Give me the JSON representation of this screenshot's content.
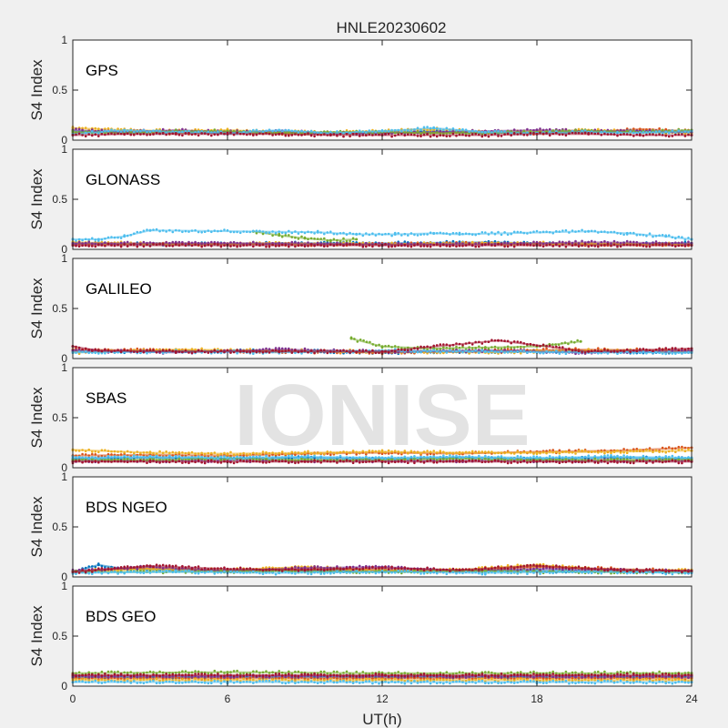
{
  "chart_data": {
    "type": "scatter",
    "title": "HNLE20230602",
    "xlabel": "UT(h)",
    "ylabel": "S4 Index",
    "xlim": [
      0,
      24
    ],
    "ylim": [
      0,
      1
    ],
    "xticks": [
      0,
      6,
      12,
      18,
      24
    ],
    "xtick_labels": [
      "0",
      "6",
      "12",
      "18",
      "24"
    ],
    "yticks": [
      0,
      0.5,
      1
    ],
    "ytick_labels": [
      "0",
      "0.5",
      "1"
    ],
    "grid": false,
    "watermark": "IONISE",
    "colors": [
      "#0072bd",
      "#d95319",
      "#edb120",
      "#7e2f8e",
      "#77ac30",
      "#4dbeee",
      "#a2142f"
    ],
    "panels": [
      {
        "label": "GPS",
        "series": [
          {
            "x": [
              0,
              2,
              4,
              6,
              8,
              10,
              12,
              14,
              16,
              18,
              20,
              22,
              24
            ],
            "y": [
              0.09,
              0.08,
              0.08,
              0.07,
              0.08,
              0.07,
              0.07,
              0.09,
              0.07,
              0.08,
              0.08,
              0.09,
              0.08
            ]
          },
          {
            "x": [
              0,
              2,
              4,
              6,
              8,
              10,
              12,
              14,
              16,
              18,
              20,
              22,
              24
            ],
            "y": [
              0.07,
              0.09,
              0.07,
              0.08,
              0.07,
              0.06,
              0.08,
              0.07,
              0.08,
              0.07,
              0.08,
              0.11,
              0.09
            ]
          },
          {
            "x": [
              0,
              2,
              4,
              6,
              8,
              10,
              12,
              14,
              16,
              18,
              20,
              22,
              24
            ],
            "y": [
              0.12,
              0.1,
              0.09,
              0.1,
              0.08,
              0.08,
              0.09,
              0.11,
              0.08,
              0.09,
              0.1,
              0.08,
              0.07
            ]
          },
          {
            "x": [
              0,
              2,
              4,
              6,
              8,
              10,
              12,
              14,
              16,
              18,
              20,
              22,
              24
            ],
            "y": [
              0.1,
              0.08,
              0.1,
              0.08,
              0.09,
              0.07,
              0.07,
              0.08,
              0.09,
              0.1,
              0.09,
              0.09,
              0.08
            ]
          },
          {
            "x": [
              0,
              2,
              4,
              6,
              8,
              10,
              12,
              14,
              16,
              18,
              20,
              22,
              24
            ],
            "y": [
              0.08,
              0.07,
              0.09,
              0.09,
              0.07,
              0.08,
              0.08,
              0.07,
              0.07,
              0.08,
              0.09,
              0.08,
              0.1
            ]
          },
          {
            "x": [
              0,
              2,
              4,
              6,
              8,
              10,
              12,
              14,
              16,
              18,
              20,
              22,
              24
            ],
            "y": [
              0.06,
              0.1,
              0.08,
              0.07,
              0.1,
              0.07,
              0.09,
              0.12,
              0.08,
              0.07,
              0.08,
              0.07,
              0.09
            ]
          },
          {
            "x": [
              0,
              2,
              4,
              6,
              8,
              10,
              12,
              14,
              16,
              18,
              20,
              22,
              24
            ],
            "y": [
              0.05,
              0.06,
              0.06,
              0.06,
              0.06,
              0.05,
              0.05,
              0.05,
              0.05,
              0.06,
              0.06,
              0.05,
              0.05
            ]
          }
        ]
      },
      {
        "label": "GLONASS",
        "series": [
          {
            "x": [
              0,
              4,
              8,
              12,
              16,
              20,
              24
            ],
            "y": [
              0.06,
              0.05,
              0.06,
              0.06,
              0.07,
              0.05,
              0.06
            ]
          },
          {
            "x": [
              0,
              4,
              8,
              12,
              16,
              20,
              24
            ],
            "y": [
              0.05,
              0.06,
              0.05,
              0.05,
              0.06,
              0.05,
              0.05
            ]
          },
          {
            "x": [
              0,
              4,
              8,
              12,
              16,
              20,
              24
            ],
            "y": [
              0.07,
              0.05,
              0.06,
              0.05,
              0.06,
              0.06,
              0.05
            ]
          },
          {
            "x": [
              0,
              4,
              8,
              12,
              16,
              20,
              24
            ],
            "y": [
              0.06,
              0.06,
              0.06,
              0.05,
              0.05,
              0.07,
              0.06
            ]
          },
          {
            "x": [
              7,
              8,
              9,
              10,
              11
            ],
            "y": [
              0.18,
              0.14,
              0.11,
              0.09,
              0.1
            ]
          },
          {
            "x": [
              0,
              1,
              2,
              3,
              9.5,
              11,
              12.5,
              14,
              15,
              20,
              21.5,
              23,
              24
            ],
            "y": [
              0.1,
              0.1,
              0.13,
              0.19,
              0.17,
              0.15,
              0.15,
              0.16,
              0.15,
              0.18,
              0.16,
              0.13,
              0.1
            ]
          },
          {
            "x": [
              0,
              6,
              12,
              18,
              24
            ],
            "y": [
              0.04,
              0.04,
              0.04,
              0.04,
              0.04
            ]
          }
        ]
      },
      {
        "label": "GALILEO",
        "series": [
          {
            "x": [
              0,
              4,
              8,
              12,
              16,
              20,
              24
            ],
            "y": [
              0.07,
              0.07,
              0.08,
              0.06,
              0.07,
              0.07,
              0.06
            ]
          },
          {
            "x": [
              0,
              4,
              8,
              12,
              16,
              20,
              24
            ],
            "y": [
              0.09,
              0.08,
              0.07,
              0.06,
              0.08,
              0.09,
              0.08
            ]
          },
          {
            "x": [
              0,
              4,
              8,
              12,
              16,
              20,
              24
            ],
            "y": [
              0.06,
              0.09,
              0.08,
              0.07,
              0.06,
              0.08,
              0.07
            ]
          },
          {
            "x": [
              0,
              4,
              8,
              12,
              16,
              20,
              24
            ],
            "y": [
              0.08,
              0.06,
              0.09,
              0.07,
              0.08,
              0.06,
              0.08
            ]
          },
          {
            "x": [
              10.8,
              12,
              14,
              16,
              18,
              19.7
            ],
            "y": [
              0.2,
              0.12,
              0.1,
              0.11,
              0.12,
              0.17
            ]
          },
          {
            "x": [
              0,
              4,
              8,
              12,
              16,
              20,
              24
            ],
            "y": [
              0.06,
              0.07,
              0.06,
              0.08,
              0.07,
              0.06,
              0.06
            ]
          },
          {
            "x": [
              0,
              1,
              4,
              8,
              12,
              16.5,
              20,
              24
            ],
            "y": [
              0.12,
              0.08,
              0.07,
              0.07,
              0.07,
              0.18,
              0.07,
              0.1
            ]
          }
        ]
      },
      {
        "label": "SBAS",
        "series": [
          {
            "x": [
              0,
              3,
              6,
              9,
              12,
              15,
              18,
              21,
              24
            ],
            "y": [
              0.09,
              0.1,
              0.09,
              0.1,
              0.09,
              0.1,
              0.09,
              0.1,
              0.09
            ]
          },
          {
            "x": [
              0,
              3,
              6,
              9,
              12,
              15,
              18,
              21,
              24
            ],
            "y": [
              0.12,
              0.13,
              0.12,
              0.14,
              0.15,
              0.14,
              0.16,
              0.17,
              0.2
            ]
          },
          {
            "x": [
              0,
              3,
              6,
              9,
              12,
              15,
              18,
              21,
              24
            ],
            "y": [
              0.18,
              0.15,
              0.14,
              0.15,
              0.16,
              0.15,
              0.15,
              0.16,
              0.17
            ]
          },
          {
            "x": [
              0,
              3,
              6,
              9,
              12,
              15,
              18,
              21,
              24
            ],
            "y": [
              0.07,
              0.07,
              0.07,
              0.07,
              0.07,
              0.07,
              0.07,
              0.07,
              0.07
            ]
          },
          {
            "x": [
              0,
              3,
              6,
              9,
              12,
              15,
              18,
              21,
              24
            ],
            "y": [
              0.08,
              0.08,
              0.09,
              0.08,
              0.08,
              0.09,
              0.08,
              0.08,
              0.08
            ]
          },
          {
            "x": [
              0,
              3,
              6,
              9,
              12,
              15,
              18,
              21,
              24
            ],
            "y": [
              0.1,
              0.11,
              0.1,
              0.11,
              0.1,
              0.11,
              0.1,
              0.11,
              0.1
            ]
          },
          {
            "x": [
              0,
              3,
              6,
              9,
              12,
              15,
              18,
              21,
              24
            ],
            "y": [
              0.06,
              0.06,
              0.06,
              0.06,
              0.06,
              0.06,
              0.06,
              0.06,
              0.06
            ]
          }
        ]
      },
      {
        "label": "BDS NGEO",
        "series": [
          {
            "x": [
              0,
              1,
              2,
              6,
              12,
              18,
              24
            ],
            "y": [
              0.05,
              0.12,
              0.08,
              0.06,
              0.06,
              0.06,
              0.05
            ]
          },
          {
            "x": [
              0,
              3,
              6,
              9,
              12,
              15,
              18,
              21,
              24
            ],
            "y": [
              0.05,
              0.09,
              0.06,
              0.08,
              0.07,
              0.06,
              0.1,
              0.08,
              0.06
            ]
          },
          {
            "x": [
              0,
              3,
              6,
              9,
              12,
              15,
              18,
              21,
              24
            ],
            "y": [
              0.06,
              0.08,
              0.07,
              0.1,
              0.06,
              0.07,
              0.12,
              0.06,
              0.07
            ]
          },
          {
            "x": [
              0,
              3,
              6,
              9,
              12,
              15,
              18,
              21,
              24
            ],
            "y": [
              0.06,
              0.1,
              0.06,
              0.09,
              0.1,
              0.06,
              0.08,
              0.07,
              0.06
            ]
          },
          {
            "x": [
              0,
              4,
              8,
              12,
              16,
              20,
              24
            ],
            "y": [
              0.05,
              0.05,
              0.06,
              0.05,
              0.06,
              0.05,
              0.05
            ]
          },
          {
            "x": [
              0,
              4,
              8,
              12,
              16,
              20,
              24
            ],
            "y": [
              0.04,
              0.05,
              0.04,
              0.05,
              0.04,
              0.05,
              0.04
            ]
          },
          {
            "x": [
              0,
              3,
              6,
              9,
              12,
              15,
              18,
              21,
              24
            ],
            "y": [
              0.05,
              0.11,
              0.08,
              0.07,
              0.09,
              0.07,
              0.11,
              0.07,
              0.06
            ]
          }
        ]
      },
      {
        "label": "BDS GEO",
        "series": [
          {
            "x": [
              0,
              6,
              12,
              18,
              24
            ],
            "y": [
              0.09,
              0.09,
              0.09,
              0.09,
              0.09
            ]
          },
          {
            "x": [
              0,
              6,
              12,
              18,
              24
            ],
            "y": [
              0.08,
              0.08,
              0.08,
              0.08,
              0.08
            ]
          },
          {
            "x": [
              0,
              6,
              12,
              18,
              24
            ],
            "y": [
              0.06,
              0.06,
              0.06,
              0.06,
              0.06
            ]
          },
          {
            "x": [
              0,
              6,
              12,
              18,
              24
            ],
            "y": [
              0.1,
              0.1,
              0.1,
              0.1,
              0.1
            ]
          },
          {
            "x": [
              0,
              6,
              12,
              18,
              24
            ],
            "y": [
              0.13,
              0.14,
              0.13,
              0.13,
              0.13
            ]
          },
          {
            "x": [
              0,
              6,
              12,
              18,
              24
            ],
            "y": [
              0.04,
              0.04,
              0.04,
              0.04,
              0.04
            ]
          },
          {
            "x": [
              0,
              6,
              12,
              18,
              24
            ],
            "y": [
              0.11,
              0.11,
              0.11,
              0.11,
              0.11
            ]
          }
        ]
      }
    ]
  }
}
